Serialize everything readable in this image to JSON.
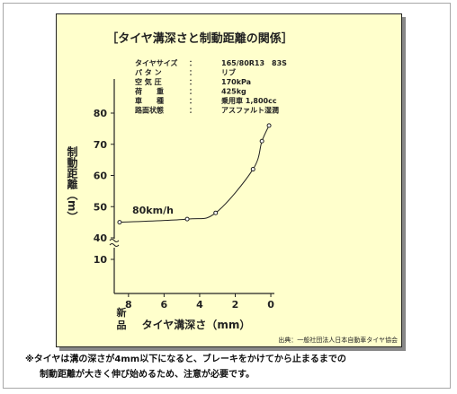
{
  "title": "［タイヤ溝深さと制動距離の関係］",
  "specs": [
    {
      "label": "タイヤサイズ",
      "colon": "：",
      "value": "165/80R13　83S"
    },
    {
      "label": "パ タ ン",
      "colon": "：",
      "value": "リブ"
    },
    {
      "label": "空 気 圧",
      "colon": "：",
      "value": "170kPa"
    },
    {
      "label": "荷　　重",
      "colon": "：",
      "value": "425kg"
    },
    {
      "label": "車　　種",
      "colon": "：",
      "value": "乗用車 1,800cc"
    },
    {
      "label": "路面状態",
      "colon": "：",
      "value": "アスファルト湿潤"
    }
  ],
  "source": "出典：一般社団法人日本自動車タイヤ協会",
  "notes": [
    "※タイヤは溝の深さが4mm以下になると、ブレーキをかけてから止まるまでの",
    "制動距離が大きく伸び始めるため、注意が必要です。"
  ],
  "chart_data": {
    "type": "scatter",
    "title": "［タイヤ溝深さと制動距離の関係］",
    "xlabel": "タイヤ溝深さ（mm）",
    "ylabel": "制動距離（m）",
    "x_tick_labels": [
      "8",
      "6",
      "4",
      "2",
      "0"
    ],
    "x_tick_values": [
      8,
      6,
      4,
      2,
      0
    ],
    "x_extra_label": "新品",
    "y_tick_labels": [
      "10",
      "40",
      "50",
      "60",
      "70",
      "80"
    ],
    "y_tick_values": [
      10,
      40,
      50,
      60,
      70,
      80
    ],
    "x_range": [
      8.8,
      -0.2
    ],
    "axis_break": true,
    "annotation": "80km/h",
    "points": [
      {
        "x": 8.5,
        "y": 45
      },
      {
        "x": 4.7,
        "y": 46
      },
      {
        "x": 3.1,
        "y": 48
      },
      {
        "x": 1.0,
        "y": 62
      },
      {
        "x": 0.5,
        "y": 71
      },
      {
        "x": 0.1,
        "y": 76
      }
    ],
    "grid": false,
    "colors": {
      "panel": "#ffffcc",
      "ink": "#222222",
      "shadow": "#888888"
    }
  }
}
